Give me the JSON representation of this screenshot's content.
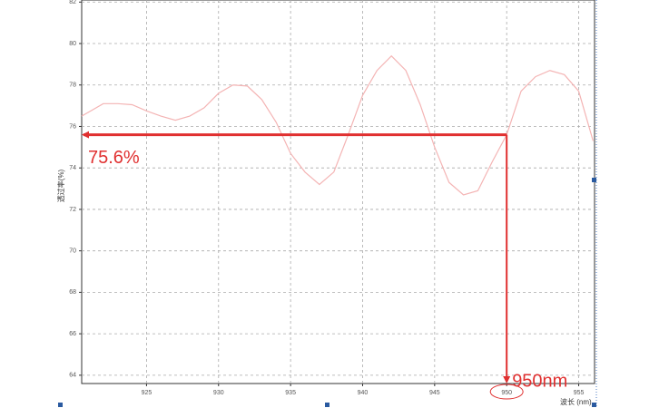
{
  "chart_data": {
    "type": "line",
    "x_label": "波长 (nm)",
    "y_label": "透过率(%)",
    "x": [
      920.5,
      921,
      922,
      923,
      924,
      925,
      926,
      927,
      928,
      929,
      930,
      931,
      932,
      933,
      934,
      935,
      936,
      937,
      938,
      939,
      940,
      941,
      942,
      943,
      944,
      945,
      946,
      947,
      948,
      949,
      950,
      951,
      952,
      953,
      954,
      955,
      956
    ],
    "series": [
      {
        "color": "#f4b4b4",
        "values": [
          76.5,
          76.7,
          77.1,
          77.1,
          77.05,
          76.75,
          76.5,
          76.3,
          76.5,
          76.9,
          77.6,
          78.0,
          77.95,
          77.3,
          76.2,
          74.7,
          73.8,
          73.2,
          73.8,
          75.6,
          77.5,
          78.7,
          79.4,
          78.7,
          77.05,
          75.0,
          73.3,
          72.7,
          72.9,
          74.3,
          75.6,
          77.7,
          78.4,
          78.7,
          78.5,
          77.7,
          75.3
        ]
      }
    ],
    "xlim": [
      920.5,
      956.1
    ],
    "ylim": [
      63.6,
      82.1
    ],
    "xticks": [
      925,
      930,
      935,
      940,
      945,
      950,
      955
    ],
    "yticks": [
      64,
      66,
      68,
      70,
      72,
      74,
      76,
      78,
      80,
      82
    ],
    "grid": true,
    "annotations": [
      {
        "label": "75.6%",
        "value": 75.6,
        "color": "#e03030"
      },
      {
        "label": "950nm",
        "value": 950,
        "color": "#e03030"
      }
    ]
  }
}
